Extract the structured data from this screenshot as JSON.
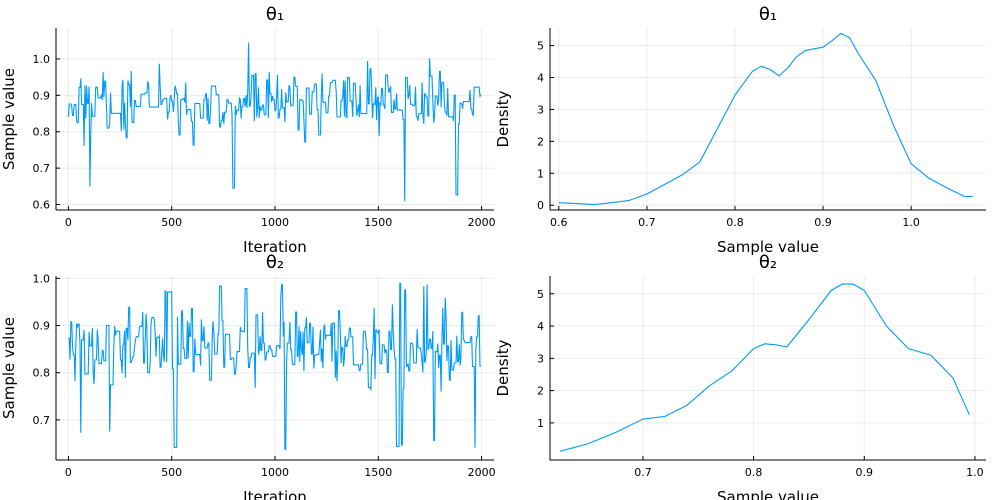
{
  "colors": {
    "series": "#009af9",
    "axis": "#000000",
    "background": "#ffffff"
  },
  "chart_data": [
    {
      "type": "line",
      "title": "θ₁",
      "xlabel": "Iteration",
      "ylabel": "Sample value",
      "xlim": [
        -60,
        2060
      ],
      "ylim": [
        0.585,
        1.085
      ],
      "xticks": [
        0,
        500,
        1000,
        1500,
        2000
      ],
      "yticks": [
        0.6,
        0.7,
        0.8,
        0.9,
        1.0
      ],
      "xtick_labels": [
        "0",
        "500",
        "1000",
        "1500",
        "2000"
      ],
      "ytick_labels": [
        "0.6",
        "0.7",
        "0.8",
        "0.9",
        "1.0"
      ],
      "grid": true,
      "legend": "none",
      "trace": {
        "n_iter": 2000,
        "seed": 11,
        "center": 0.88,
        "spread": 0.11,
        "min": 0.6,
        "max": 1.07
      }
    },
    {
      "type": "line",
      "title": "θ₁",
      "xlabel": "Sample value",
      "ylabel": "Density",
      "xlim": [
        0.59,
        1.085
      ],
      "ylim": [
        -0.15,
        5.55
      ],
      "xticks": [
        0.6,
        0.7,
        0.8,
        0.9,
        1.0
      ],
      "yticks": [
        0,
        1,
        2,
        3,
        4,
        5
      ],
      "xtick_labels": [
        "0.6",
        "0.7",
        "0.8",
        "0.9",
        "1.0"
      ],
      "ytick_labels": [
        "0",
        "1",
        "2",
        "3",
        "4",
        "5"
      ],
      "grid": true,
      "legend": "none",
      "series": [
        {
          "x": [
            0.6,
            0.62,
            0.64,
            0.66,
            0.68,
            0.7,
            0.72,
            0.74,
            0.76,
            0.78,
            0.8,
            0.82,
            0.83,
            0.84,
            0.85,
            0.86,
            0.87,
            0.88,
            0.9,
            0.91,
            0.92,
            0.93,
            0.94,
            0.96,
            0.98,
            1.0,
            1.02,
            1.04,
            1.06,
            1.07
          ],
          "y": [
            0.08,
            0.05,
            0.02,
            0.08,
            0.15,
            0.35,
            0.65,
            0.95,
            1.35,
            2.4,
            3.45,
            4.2,
            4.35,
            4.25,
            4.05,
            4.3,
            4.65,
            4.85,
            4.95,
            5.15,
            5.38,
            5.25,
            4.75,
            3.9,
            2.5,
            1.3,
            0.85,
            0.55,
            0.28,
            0.27
          ]
        }
      ]
    },
    {
      "type": "line",
      "title": "θ₂",
      "xlabel": "Iteration",
      "ylabel": "Sample value",
      "xlim": [
        -60,
        2060
      ],
      "ylim": [
        0.615,
        1.005
      ],
      "xticks": [
        0,
        500,
        1000,
        1500,
        2000
      ],
      "yticks": [
        0.7,
        0.8,
        0.9,
        1.0
      ],
      "xtick_labels": [
        "0",
        "500",
        "1000",
        "1500",
        "2000"
      ],
      "ytick_labels": [
        "0.7",
        "0.8",
        "0.9",
        "1.0"
      ],
      "grid": true,
      "legend": "none",
      "trace": {
        "n_iter": 2000,
        "seed": 23,
        "center": 0.86,
        "spread": 0.1,
        "min": 0.63,
        "max": 1.0
      }
    },
    {
      "type": "line",
      "title": "θ₂",
      "xlabel": "Sample value",
      "ylabel": "Density",
      "xlim": [
        0.616,
        1.01
      ],
      "ylim": [
        -0.15,
        5.55
      ],
      "xticks": [
        0.7,
        0.8,
        0.9,
        1.0
      ],
      "yticks": [
        1,
        2,
        3,
        4,
        5
      ],
      "xtick_labels": [
        "0.7",
        "0.8",
        "0.9",
        "1.0"
      ],
      "ytick_labels": [
        "1",
        "2",
        "3",
        "4",
        "5"
      ],
      "grid": true,
      "legend": "none",
      "series": [
        {
          "x": [
            0.625,
            0.65,
            0.675,
            0.7,
            0.72,
            0.74,
            0.76,
            0.78,
            0.8,
            0.81,
            0.82,
            0.83,
            0.85,
            0.87,
            0.88,
            0.89,
            0.9,
            0.92,
            0.94,
            0.96,
            0.98,
            0.995
          ],
          "y": [
            0.12,
            0.35,
            0.7,
            1.12,
            1.2,
            1.55,
            2.15,
            2.6,
            3.3,
            3.45,
            3.42,
            3.35,
            4.2,
            5.1,
            5.3,
            5.3,
            5.1,
            4.0,
            3.3,
            3.1,
            2.4,
            1.25
          ]
        }
      ]
    }
  ]
}
